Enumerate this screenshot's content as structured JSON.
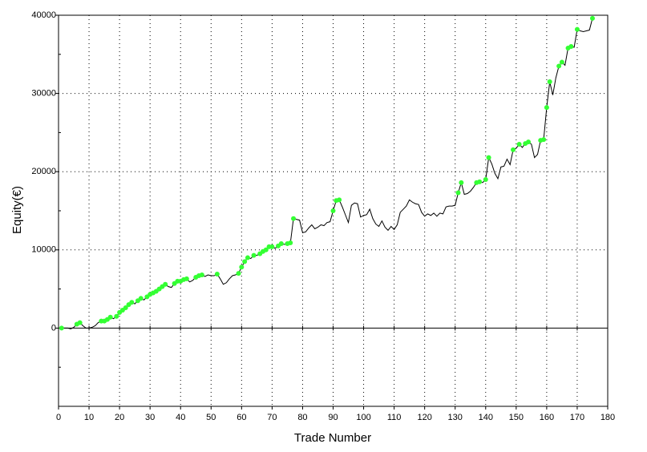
{
  "chart_data": {
    "type": "line",
    "x_label": "Trade Number",
    "y_label": "Equity(€)",
    "xlim": [
      0,
      180
    ],
    "xticks": [
      0,
      10,
      20,
      30,
      40,
      50,
      60,
      70,
      80,
      90,
      100,
      110,
      120,
      130,
      140,
      150,
      160,
      170,
      180
    ],
    "ylim": [
      -10000,
      40000
    ],
    "yticks": [
      0,
      10000,
      20000,
      30000,
      40000
    ],
    "minor_yticks": [
      -5000,
      5000,
      15000,
      25000,
      35000
    ],
    "grid": true,
    "series": [
      {
        "color": "#000000",
        "style": "line",
        "x": [
          1,
          2,
          3,
          4,
          5,
          6,
          7,
          8,
          9,
          10,
          11,
          12,
          13,
          14,
          15,
          16,
          17,
          18,
          19,
          20,
          21,
          22,
          23,
          24,
          25,
          26,
          27,
          28,
          29,
          30,
          31,
          32,
          33,
          34,
          35,
          36,
          37,
          38,
          39,
          40,
          41,
          42,
          43,
          44,
          45,
          46,
          47,
          48,
          49,
          50,
          51,
          52,
          53,
          54,
          55,
          56,
          57,
          58,
          59,
          60,
          61,
          62,
          63,
          64,
          65,
          66,
          67,
          68,
          69,
          70,
          71,
          72,
          73,
          74,
          75,
          76,
          77,
          78,
          79,
          80,
          81,
          82,
          83,
          84,
          85,
          86,
          87,
          88,
          89,
          90,
          91,
          92,
          93,
          94,
          95,
          96,
          97,
          98,
          99,
          100,
          101,
          102,
          103,
          104,
          105,
          106,
          107,
          108,
          109,
          110,
          111,
          112,
          113,
          114,
          115,
          116,
          117,
          118,
          119,
          120,
          121,
          122,
          123,
          124,
          125,
          126,
          127,
          128,
          129,
          130,
          131,
          132,
          133,
          134,
          135,
          136,
          137,
          138,
          139,
          140,
          141,
          142,
          143,
          144,
          145,
          146,
          147,
          148,
          149,
          150,
          151,
          152,
          153,
          154,
          155,
          156,
          157,
          158,
          159,
          160,
          161,
          162,
          163,
          164,
          165,
          166,
          167,
          168,
          169,
          170,
          171,
          172,
          173,
          174,
          175
        ],
        "values": [
          0,
          0,
          0,
          -100,
          100,
          500,
          700,
          300,
          0,
          0,
          100,
          300,
          700,
          900,
          900,
          1100,
          1400,
          1200,
          1500,
          2000,
          2300,
          2600,
          3000,
          3300,
          3100,
          3500,
          3800,
          3600,
          4000,
          4300,
          4500,
          4700,
          5000,
          5300,
          5600,
          5300,
          5200,
          5700,
          6000,
          6000,
          6200,
          6300,
          5900,
          6100,
          6500,
          6700,
          6800,
          6600,
          6800,
          6700,
          6700,
          6900,
          6300,
          5600,
          5800,
          6300,
          6700,
          6800,
          7000,
          7800,
          8500,
          9000,
          8900,
          9300,
          9300,
          9500,
          9800,
          10000,
          10400,
          10400,
          10200,
          10500,
          10800,
          10700,
          10800,
          10900,
          14000,
          13900,
          13800,
          12200,
          12300,
          12800,
          13200,
          12700,
          12900,
          13200,
          13100,
          13500,
          13600,
          15000,
          16300,
          16400,
          15500,
          14500,
          13500,
          15700,
          16000,
          15900,
          14200,
          14400,
          14500,
          15200,
          14000,
          13300,
          13000,
          13700,
          12900,
          12500,
          13000,
          12600,
          13200,
          14800,
          15200,
          15600,
          16400,
          16100,
          15900,
          15800,
          14800,
          14300,
          14600,
          14400,
          14700,
          14300,
          14700,
          14600,
          15500,
          15600,
          15600,
          15700,
          17300,
          18600,
          17100,
          17200,
          17500,
          18000,
          18600,
          18700,
          18600,
          19000,
          21800,
          21000,
          19800,
          19100,
          20600,
          20700,
          21600,
          20900,
          22800,
          23000,
          23500,
          23100,
          23600,
          23800,
          23500,
          21800,
          22200,
          24000,
          24100,
          28200,
          31500,
          29800,
          32000,
          33500,
          34000,
          33600,
          35800,
          36000,
          35900,
          38200,
          38000,
          37900,
          38000,
          38100,
          39600
        ]
      },
      {
        "color": "#33ff33",
        "style": "markers",
        "x": [
          1,
          6,
          7,
          14,
          15,
          16,
          17,
          19,
          20,
          21,
          22,
          23,
          24,
          26,
          27,
          29,
          30,
          31,
          32,
          33,
          34,
          35,
          38,
          39,
          40,
          41,
          42,
          45,
          46,
          47,
          52,
          59,
          60,
          61,
          62,
          64,
          66,
          67,
          68,
          69,
          70,
          72,
          73,
          75,
          76,
          77,
          90,
          91,
          92,
          131,
          132,
          137,
          138,
          140,
          141,
          149,
          151,
          153,
          154,
          158,
          159,
          160,
          161,
          164,
          165,
          167,
          168,
          170,
          175
        ],
        "values": [
          0,
          500,
          700,
          900,
          900,
          1100,
          1400,
          1500,
          2000,
          2300,
          2600,
          3000,
          3300,
          3500,
          3800,
          4000,
          4300,
          4500,
          4700,
          5000,
          5300,
          5600,
          5700,
          6000,
          6000,
          6200,
          6300,
          6500,
          6700,
          6800,
          6900,
          7000,
          7800,
          8500,
          9000,
          9300,
          9500,
          9800,
          10000,
          10400,
          10400,
          10500,
          10800,
          10800,
          10900,
          14000,
          15000,
          16300,
          16400,
          17300,
          18600,
          18600,
          18700,
          19000,
          21800,
          22800,
          23500,
          23600,
          23800,
          24000,
          24100,
          28200,
          31500,
          33500,
          34000,
          35800,
          36000,
          38200,
          39600
        ]
      }
    ]
  }
}
